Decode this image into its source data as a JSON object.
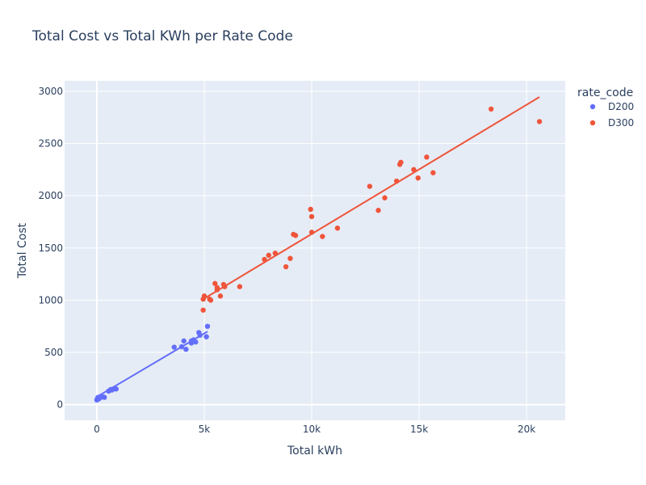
{
  "chart_data": {
    "type": "scatter",
    "title": "Total Cost vs Total KWh per Rate Code",
    "xlabel": "Total kWh",
    "ylabel": "Total Cost",
    "xlim": [
      -1500,
      21800
    ],
    "ylim": [
      -150,
      3100
    ],
    "grid": true,
    "legend_title": "rate_code",
    "legend_position": "right",
    "xticks": [
      {
        "value": 0,
        "label": "0"
      },
      {
        "value": 5000,
        "label": "5k"
      },
      {
        "value": 10000,
        "label": "10k"
      },
      {
        "value": 15000,
        "label": "15k"
      },
      {
        "value": 20000,
        "label": "20k"
      }
    ],
    "yticks": [
      {
        "value": 0,
        "label": "0"
      },
      {
        "value": 500,
        "label": "500"
      },
      {
        "value": 1000,
        "label": "1000"
      },
      {
        "value": 1500,
        "label": "1500"
      },
      {
        "value": 2000,
        "label": "2000"
      },
      {
        "value": 2500,
        "label": "2500"
      },
      {
        "value": 3000,
        "label": "3000"
      }
    ],
    "colors": {
      "plot_bg": "#e5ecf6",
      "grid": "#ffffff",
      "text": "#2a3f5f"
    },
    "series": [
      {
        "name": "D200",
        "color": "#636efa",
        "points": [
          [
            0,
            45
          ],
          [
            30,
            60
          ],
          [
            60,
            70
          ],
          [
            90,
            55
          ],
          [
            150,
            65
          ],
          [
            300,
            75
          ],
          [
            350,
            70
          ],
          [
            550,
            130
          ],
          [
            650,
            145
          ],
          [
            700,
            140
          ],
          [
            780,
            150
          ],
          [
            850,
            155
          ],
          [
            900,
            150
          ],
          [
            3600,
            550
          ],
          [
            3950,
            555
          ],
          [
            4050,
            610
          ],
          [
            4150,
            530
          ],
          [
            4400,
            590
          ],
          [
            4400,
            610
          ],
          [
            4500,
            620
          ],
          [
            4600,
            600
          ],
          [
            4750,
            690
          ],
          [
            4800,
            665
          ],
          [
            5100,
            650
          ],
          [
            5150,
            750
          ]
        ],
        "trend": [
          [
            0,
            75
          ],
          [
            5150,
            700
          ]
        ]
      },
      {
        "name": "D300",
        "color": "#ef553b",
        "points": [
          [
            4950,
            905
          ],
          [
            4950,
            1010
          ],
          [
            5000,
            1040
          ],
          [
            5250,
            1010
          ],
          [
            5300,
            1000
          ],
          [
            5500,
            1160
          ],
          [
            5600,
            1120
          ],
          [
            5600,
            1100
          ],
          [
            5750,
            1040
          ],
          [
            5900,
            1150
          ],
          [
            5950,
            1130
          ],
          [
            6650,
            1130
          ],
          [
            7800,
            1390
          ],
          [
            8000,
            1430
          ],
          [
            8300,
            1450
          ],
          [
            8800,
            1320
          ],
          [
            9000,
            1400
          ],
          [
            9150,
            1630
          ],
          [
            9250,
            1620
          ],
          [
            9950,
            1870
          ],
          [
            10000,
            1800
          ],
          [
            10000,
            1650
          ],
          [
            10500,
            1610
          ],
          [
            11200,
            1690
          ],
          [
            12700,
            2090
          ],
          [
            13100,
            1860
          ],
          [
            13400,
            1980
          ],
          [
            13950,
            2140
          ],
          [
            14100,
            2300
          ],
          [
            14150,
            2320
          ],
          [
            14750,
            2250
          ],
          [
            14950,
            2170
          ],
          [
            15350,
            2370
          ],
          [
            15650,
            2220
          ],
          [
            18350,
            2830
          ],
          [
            20600,
            2710
          ]
        ],
        "trend": [
          [
            4950,
            1010
          ],
          [
            20600,
            2945
          ]
        ]
      }
    ]
  }
}
